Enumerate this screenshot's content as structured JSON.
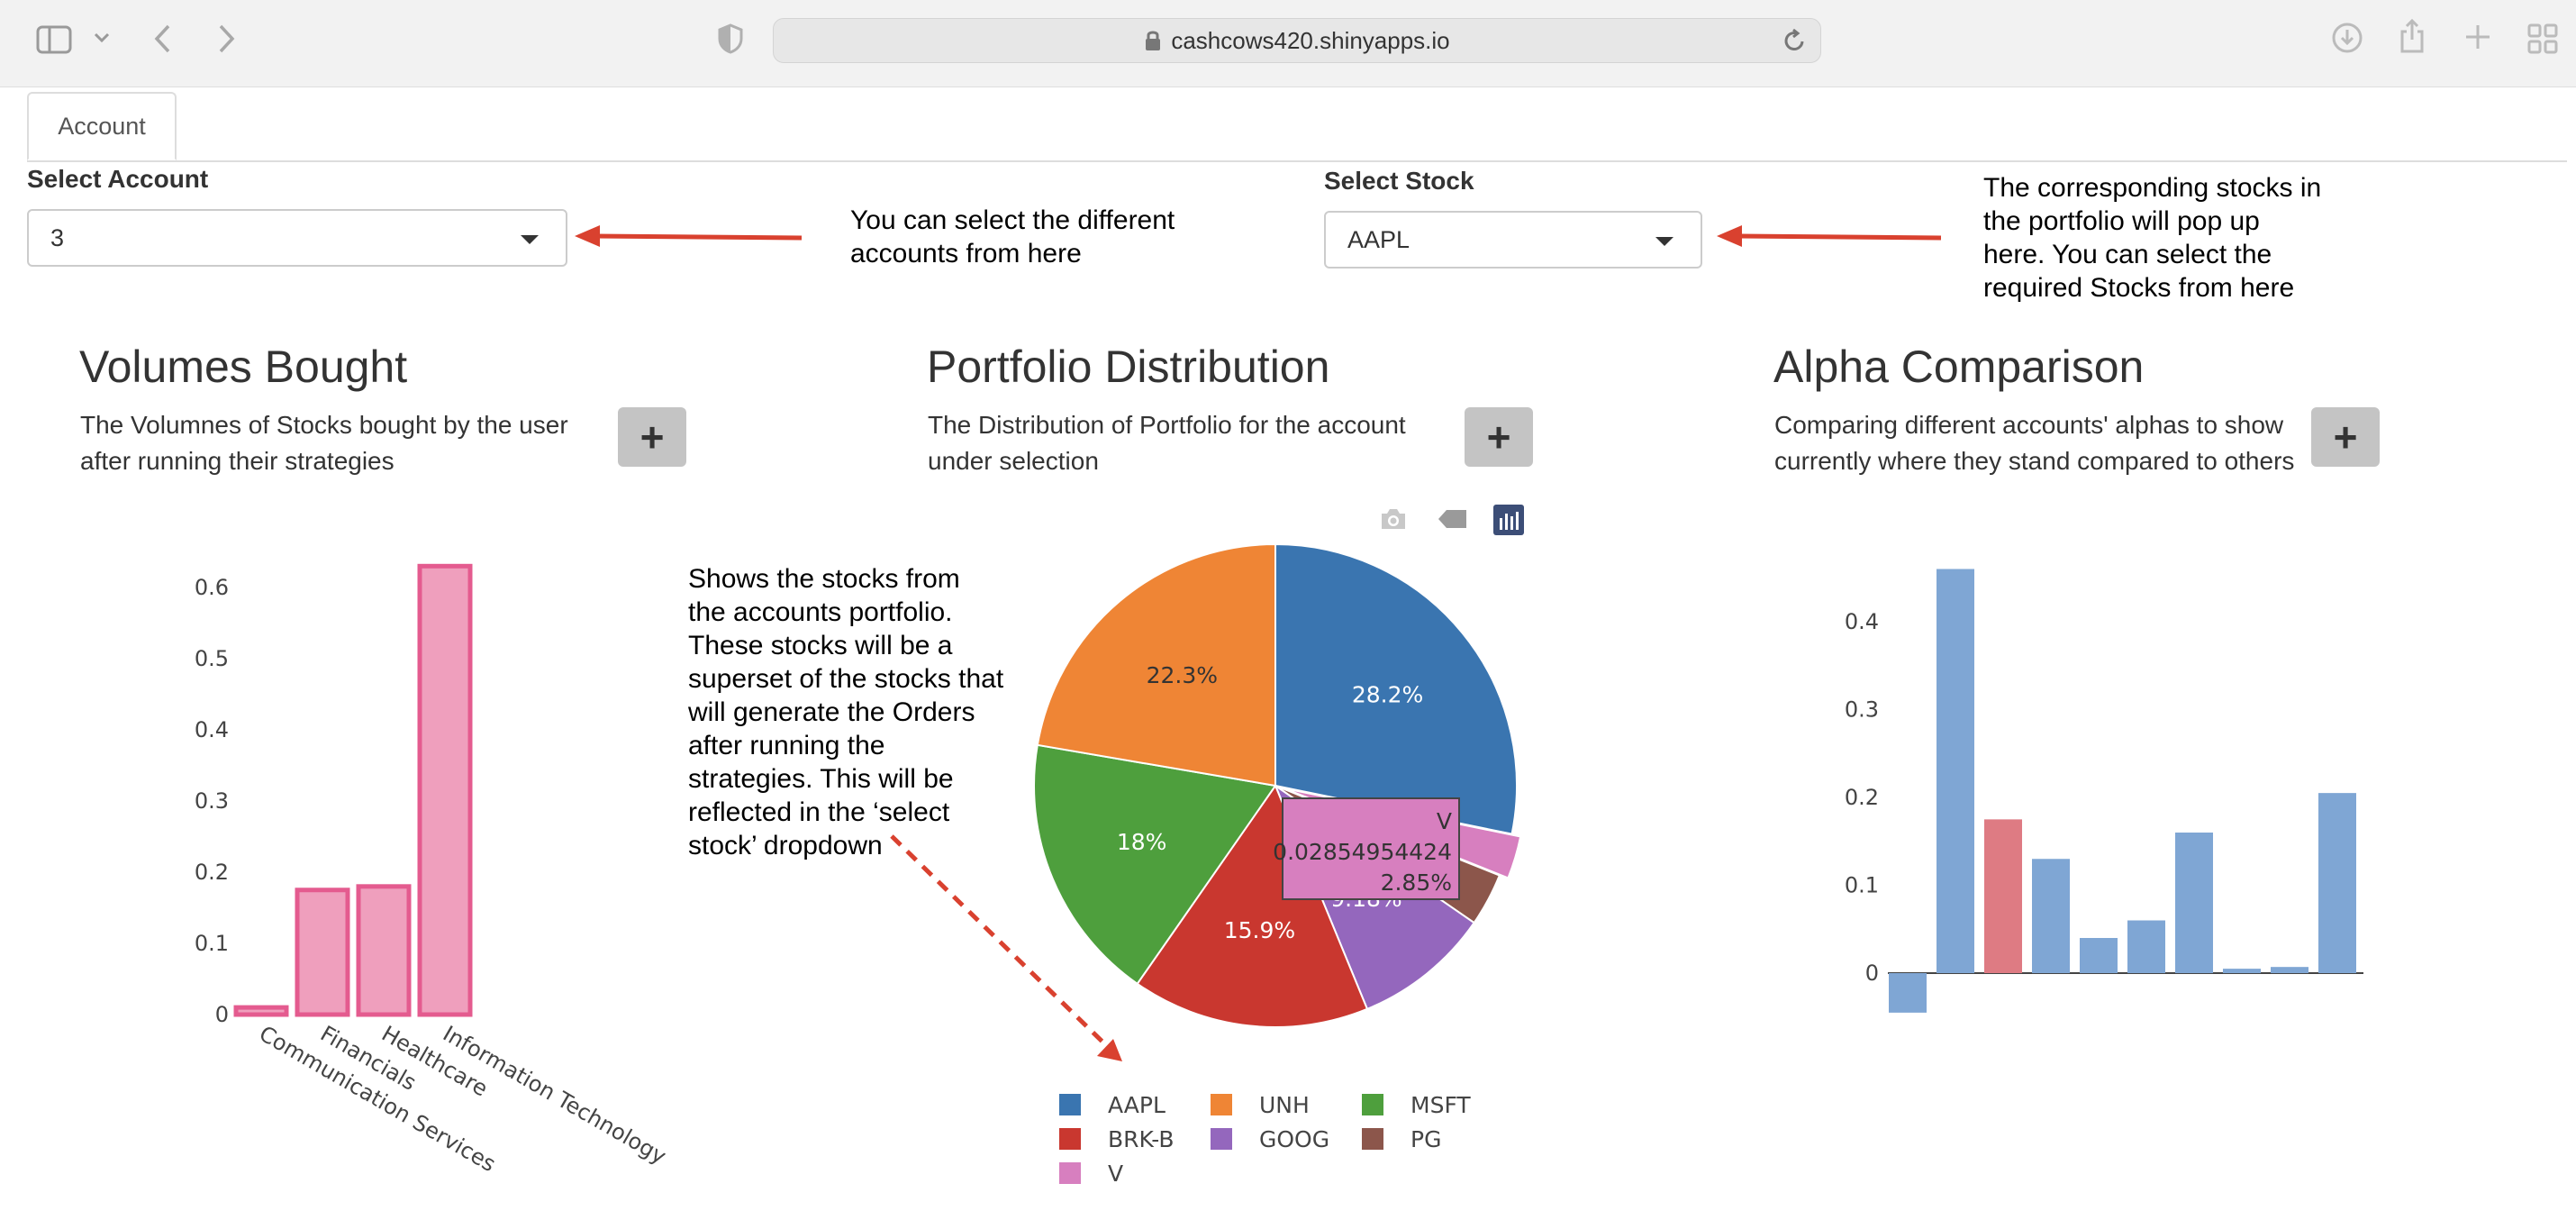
{
  "browser": {
    "url": "cashcows420.shinyapps.io"
  },
  "tabs": [
    {
      "label": "Account"
    }
  ],
  "controls": {
    "account": {
      "label": "Select Account",
      "value": "3"
    },
    "stock": {
      "label": "Select Stock",
      "value": "AAPL"
    }
  },
  "annotations": {
    "account_note": "You can select the different\naccounts from here",
    "stock_note": "The corresponding stocks in\nthe portfolio will pop up\nhere. You can select the\nrequired Stocks from here",
    "pie_note": "Shows the stocks from\nthe accounts portfolio.\nThese stocks will be a\nsuperset of the stocks that\nwill generate the Orders\nafter running the\nstrategies. This will be\nreflected in the ‘select\nstock’ dropdown"
  },
  "panels": {
    "volumes": {
      "title": "Volumes Bought",
      "description": "The Volumnes of Stocks bought by the user after running their strategies",
      "button": "+"
    },
    "portfolio": {
      "title": "Portfolio Distribution",
      "description": "The Distribution of Portfolio for the account under selection",
      "button": "+"
    },
    "alpha": {
      "title": "Alpha Comparison",
      "description": "Comparing different accounts' alphas to show currently where they stand compared to others",
      "button": "+"
    }
  },
  "plot_toolbar": [
    "camera-icon",
    "tag-icon",
    "plotly-logo-icon"
  ],
  "tooltip": {
    "label": "V",
    "value": "0.02854954424",
    "percent": "2.85%"
  },
  "colors": {
    "pink_fill": "#ef9fbd",
    "pink_line": "#e45b8f",
    "alpha_blue": "#7fa6d4",
    "alpha_red": "#de7b83",
    "annotation_red": "#d9412f"
  },
  "chart_data": [
    {
      "id": "volumes",
      "type": "bar",
      "title": "Volumes Bought",
      "categories": [
        "Communication Services",
        "Financials",
        "Healthcare",
        "Information Technology"
      ],
      "values": [
        0.01,
        0.175,
        0.18,
        0.63
      ],
      "ylim": [
        0,
        0.65
      ],
      "yticks": [
        0,
        0.1,
        0.2,
        0.3,
        0.4,
        0.5,
        0.6
      ],
      "ytick_labels": [
        "0",
        "0.1",
        "0.2",
        "0.3",
        "0.4",
        "0.5",
        "0.6"
      ]
    },
    {
      "id": "portfolio",
      "type": "pie",
      "title": "Portfolio Distribution",
      "labels": [
        "AAPL",
        "V",
        "PG",
        "GOOG",
        "BRK-B",
        "MSFT",
        "UNH"
      ],
      "values": [
        28.2,
        2.85,
        3.55,
        9.18,
        15.9,
        18.0,
        22.3
      ],
      "slice_text": [
        "28.2%",
        "",
        "",
        "9.18%",
        "15.9%",
        "18%",
        "22.3%"
      ],
      "colors": [
        "#3a75b0",
        "#d77fbf",
        "#8c564b",
        "#9467bd",
        "#c9372f",
        "#4e9f3d",
        "#ef8535"
      ],
      "legend": [
        "AAPL",
        "UNH",
        "MSFT",
        "BRK-B",
        "GOOG",
        "PG",
        "V"
      ],
      "legend_colors": [
        "#3a75b0",
        "#ef8535",
        "#4e9f3d",
        "#c9372f",
        "#9467bd",
        "#8c564b",
        "#d77fbf"
      ]
    },
    {
      "id": "alpha",
      "type": "bar",
      "title": "Alpha Comparison",
      "values": [
        -0.045,
        0.46,
        0.175,
        0.13,
        0.04,
        0.06,
        0.16,
        0.005,
        0.007,
        0.205
      ],
      "highlight_index": 2,
      "ylim": [
        -0.05,
        0.5
      ],
      "yticks": [
        0,
        0.1,
        0.2,
        0.3,
        0.4
      ],
      "ytick_labels": [
        "0",
        "0.1",
        "0.2",
        "0.3",
        "0.4"
      ]
    }
  ]
}
